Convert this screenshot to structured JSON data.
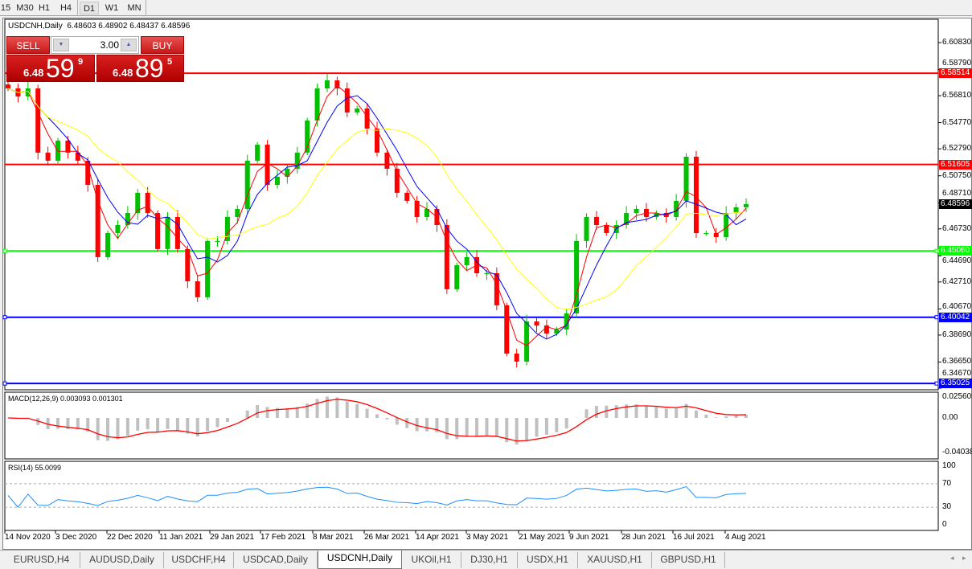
{
  "toolbar": {
    "timeframes": [
      {
        "label": "15",
        "active": false
      },
      {
        "label": "M30",
        "active": false
      },
      {
        "label": "H1",
        "active": false
      },
      {
        "label": "H4",
        "active": false
      },
      {
        "label": "D1",
        "active": true
      },
      {
        "label": "W1",
        "active": false
      },
      {
        "label": "MN",
        "active": false
      }
    ]
  },
  "header": {
    "symbol": "USDCNH,Daily",
    "ohlc": "6.48603 6.48902 6.48437 6.48596"
  },
  "trade_panel": {
    "sell_label": "SELL",
    "buy_label": "BUY",
    "lot": "3.00",
    "sell_price": {
      "prefix": "6.48",
      "big": "59",
      "sup": "9"
    },
    "buy_price": {
      "prefix": "6.48",
      "big": "89",
      "sup": "5"
    }
  },
  "chart_data": [
    {
      "type": "candlestick",
      "symbol": "USDCNH",
      "timeframe": "Daily",
      "ylim": [
        6.3467,
        6.6083
      ],
      "y_ticks": [
        "6.60830",
        "6.58790",
        "6.56810",
        "6.54770",
        "6.52790",
        "6.50750",
        "6.48710",
        "6.46730",
        "6.44690",
        "6.42710",
        "6.40670",
        "6.38690",
        "6.36650",
        "6.34670"
      ],
      "x_tick_labels": [
        "14 Nov 2020",
        "3 Dec 2020",
        "22 Dec 2020",
        "11 Jan 2021",
        "29 Jan 2021",
        "17 Feb 2021",
        "8 Mar 2021",
        "26 Mar 2021",
        "14 Apr 2021",
        "3 May 2021",
        "21 May 2021",
        "9 Jun 2021",
        "28 Jun 2021",
        "16 Jul 2021",
        "4 Aug 2021"
      ],
      "closes": [
        6.5736,
        6.5675,
        6.5736,
        6.525,
        6.5189,
        6.5341,
        6.525,
        6.5189,
        6.5006,
        6.4459,
        6.4641,
        6.4702,
        6.4793,
        6.4946,
        6.4793,
        6.452,
        6.4763,
        6.452,
        6.4276,
        6.4155,
        6.4581,
        6.4581,
        6.4763,
        6.4824,
        6.5189,
        6.531,
        6.5006,
        6.5067,
        6.5128,
        6.525,
        6.5493,
        6.5736,
        6.5797,
        6.5736,
        6.5554,
        6.5584,
        6.5432,
        6.525,
        6.5128,
        6.4946,
        6.4885,
        6.4763,
        6.4824,
        6.4702,
        6.4216,
        6.4398,
        6.4459,
        6.4337,
        6.4337,
        6.4094,
        6.3729,
        6.3668,
        6.3972,
        6.3942,
        6.3881,
        6.3911,
        6.4033,
        6.4581,
        6.4763,
        6.4702,
        6.4641,
        6.4702,
        6.4793,
        6.4824,
        6.4763,
        6.4793,
        6.4763,
        6.4885,
        6.5219,
        6.4641,
        6.4641,
        6.4611,
        6.4793,
        6.4836,
        6.486
      ],
      "current_price": "6.48596",
      "horizontal_lines": [
        {
          "price": "6.58514",
          "color": "#ff0000"
        },
        {
          "price": "6.51605",
          "color": "#ff0000"
        },
        {
          "price": "6.45060",
          "color": "#00ff00"
        },
        {
          "price": "6.40042",
          "color": "#0000ff"
        },
        {
          "price": "6.35025",
          "color": "#0000ff"
        }
      ],
      "moving_average_colors": [
        "#ff0000",
        "#0000ff",
        "#ffff00"
      ],
      "candle_colors": {
        "up": "#00c000",
        "down": "#ff0000"
      }
    },
    {
      "type": "histogram+line",
      "title": "MACD(12,26,9) 0.003093 0.001301",
      "ylim": [
        -0.04038,
        0.025605
      ],
      "y_ticks": [
        "0.025605",
        "0.00",
        "-0.040380"
      ],
      "colors": {
        "histogram": "#c0c0c0",
        "signal": "#ff0000"
      }
    },
    {
      "type": "line",
      "title": "RSI(14) 55.0099",
      "ylim": [
        0,
        100
      ],
      "y_ticks": [
        "100",
        "70",
        "30",
        "0"
      ],
      "levels": [
        70,
        30
      ],
      "color": "#1e90ff"
    }
  ],
  "tabs": [
    {
      "label": "EURUSD,H4",
      "active": false
    },
    {
      "label": "AUDUSD,Daily",
      "active": false
    },
    {
      "label": "USDCHF,H4",
      "active": false
    },
    {
      "label": "USDCAD,Daily",
      "active": false
    },
    {
      "label": "USDCNH,Daily",
      "active": true
    },
    {
      "label": "UKOil,H1",
      "active": false
    },
    {
      "label": "DJ30,H1",
      "active": false
    },
    {
      "label": "USDX,H1",
      "active": false
    },
    {
      "label": "XAUUSD,H1",
      "active": false
    },
    {
      "label": "GBPUSD,H1",
      "active": false
    }
  ]
}
